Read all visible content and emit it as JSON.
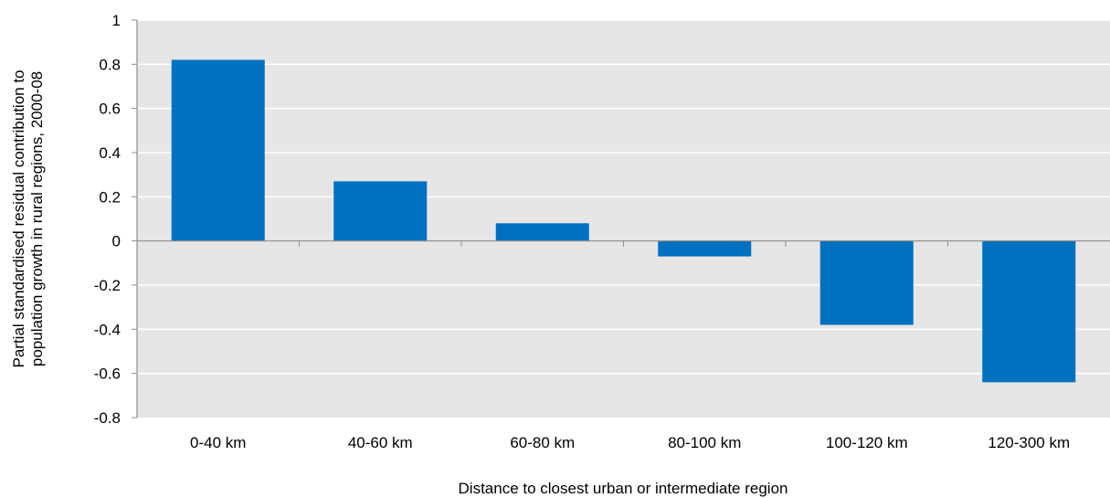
{
  "chart_data": {
    "type": "bar",
    "title": "",
    "xlabel": "Distance to closest urban or intermediate region",
    "ylabel_lines": [
      "Partial standardised residual contribution to",
      "population growth in rural regions, 2000-08"
    ],
    "categories": [
      "0-40 km",
      "40-60 km",
      "60-80 km",
      "80-100 km",
      "100-120 km",
      "120-300 km"
    ],
    "series": [
      {
        "values": [
          0.82,
          0.27,
          0.08,
          -0.07,
          -0.38,
          -0.64
        ]
      }
    ],
    "ylim": [
      -0.8,
      1
    ],
    "yticks": [
      1,
      0.8,
      0.6,
      0.4,
      0.2,
      0,
      -0.2,
      -0.4,
      -0.6,
      -0.8
    ],
    "ytick_labels": [
      "1",
      "0.8",
      "0.6",
      "0.4",
      "0.2",
      "0",
      "-0.2",
      "-0.4",
      "-0.6",
      "-0.8"
    ],
    "grid": true,
    "legend": "none",
    "colors": {
      "bar": "#0070C0",
      "plot_background": "#E6E6E6",
      "gridline": "#FFFFFF",
      "axis": "#8C8C8C"
    }
  }
}
